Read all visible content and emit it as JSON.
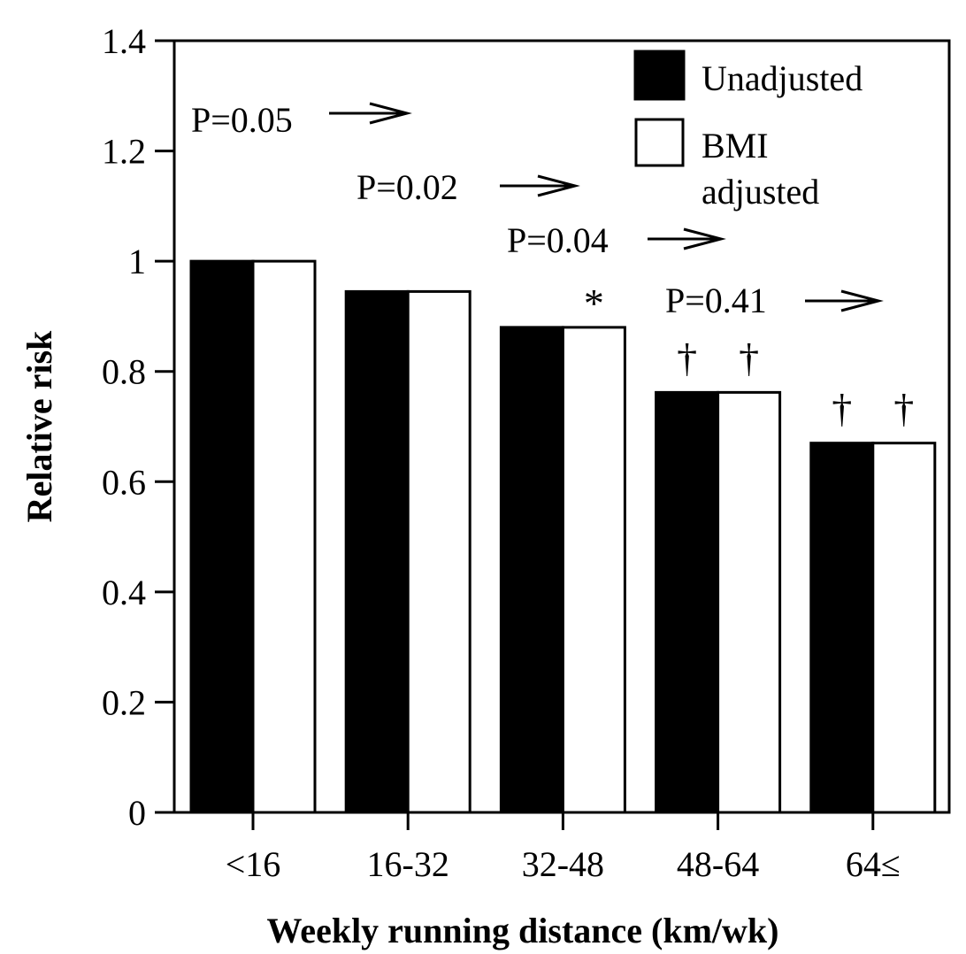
{
  "chart_data": {
    "type": "bar",
    "categories": [
      "<16",
      "16-32",
      "32-48",
      "48-64",
      "64≤"
    ],
    "series": [
      {
        "name": "Unadjusted",
        "values": [
          1.0,
          0.945,
          0.88,
          0.762,
          0.67
        ],
        "color": "#000000"
      },
      {
        "name": "BMI adjusted",
        "values": [
          1.0,
          0.945,
          0.88,
          0.762,
          0.67
        ],
        "color": "#ffffff"
      }
    ],
    "xlabel": "Weekly running distance  (km/wk)",
    "ylabel": "Relative risk",
    "ylim": [
      0,
      1.4
    ],
    "yticks": [
      "0",
      "0.2",
      "0.4",
      "0.6",
      "0.8",
      "1",
      "1.2",
      "1.4"
    ],
    "grid": false,
    "legend_position": "top-right",
    "legend": {
      "unadjusted": "Unadjusted",
      "bmi_line1": "BMI",
      "bmi_line2": "adjusted"
    },
    "annotations": {
      "p_values": [
        "P=0.05",
        "P=0.02",
        "P=0.04",
        "P=0.41"
      ],
      "significance_marks": [
        {
          "category": "32-48",
          "series": "BMI adjusted",
          "symbol": "*"
        },
        {
          "category": "48-64",
          "series": "Unadjusted",
          "symbol": "†"
        },
        {
          "category": "48-64",
          "series": "BMI adjusted",
          "symbol": "†"
        },
        {
          "category": "64≤",
          "series": "Unadjusted",
          "symbol": "†"
        },
        {
          "category": "64≤",
          "series": "BMI adjusted",
          "symbol": "†"
        }
      ]
    }
  }
}
